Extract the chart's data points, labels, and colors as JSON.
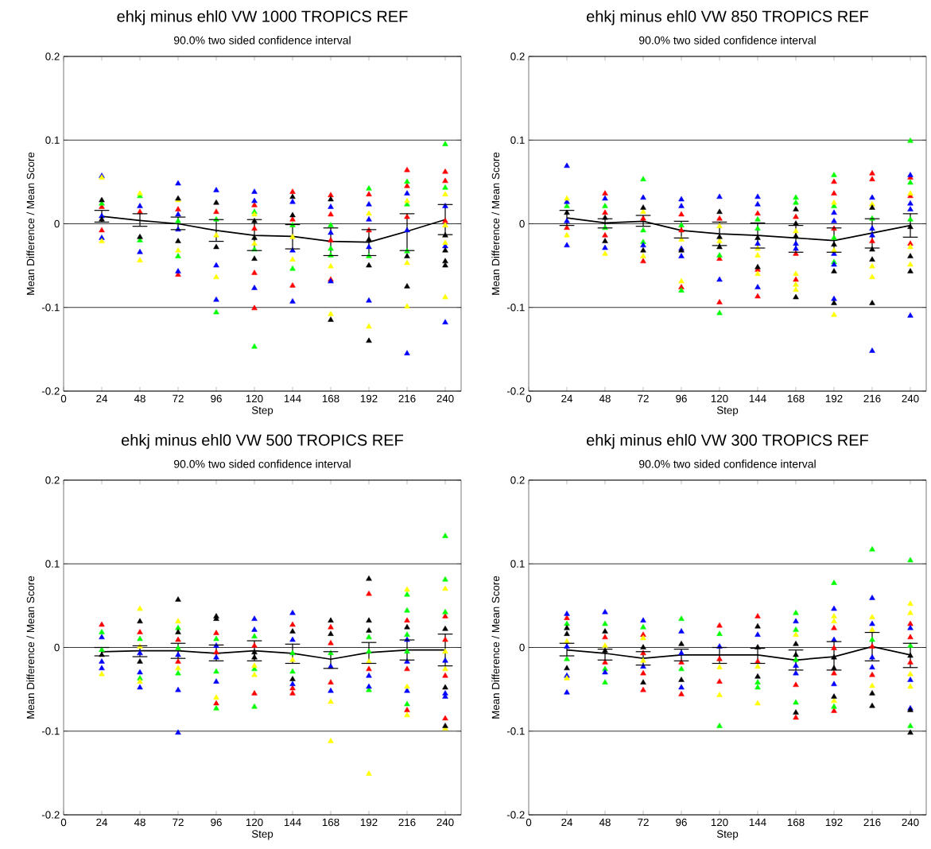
{
  "chart_data": [
    {
      "type": "scatter",
      "title": "ehkj minus ehl0 VW 1000 TROPICS REF",
      "subtitle": "90.0% two sided confidence interval",
      "xlabel": "Step",
      "ylabel": "Mean Difference / Mean Score",
      "xlim": [
        0,
        250
      ],
      "ylim": [
        -0.2,
        0.2
      ],
      "xticks": [
        0,
        24,
        48,
        72,
        96,
        120,
        144,
        168,
        192,
        216,
        240
      ],
      "yticks": [
        -0.2,
        -0.1,
        0,
        0.1,
        0.2
      ],
      "grid": "y",
      "marker": "triangle",
      "series": [
        {
          "type": "scatter",
          "color": "#ff0000",
          "x": [
            24,
            24,
            48,
            72,
            72,
            96,
            120,
            120,
            120,
            120,
            144,
            144,
            144,
            168,
            168,
            168,
            168,
            192,
            192,
            216,
            216,
            216,
            240,
            240,
            240
          ],
          "values": [
            0.02,
            -0.008,
            0.014,
            0.017,
            -0.061,
            0.014,
            0.022,
            -0.006,
            -0.059,
            -0.101,
            0.038,
            0.005,
            -0.074,
            0.034,
            0.011,
            -0.02,
            -0.067,
            0.035,
            -0.008,
            0.064,
            0.045,
            0.008,
            0.062,
            0.051,
            0.003
          ]
        },
        {
          "type": "scatter",
          "color": "#00ff00",
          "x": [
            24,
            48,
            48,
            72,
            72,
            96,
            96,
            120,
            120,
            120,
            144,
            144,
            168,
            168,
            168,
            192,
            192,
            216,
            216,
            216,
            240,
            240
          ],
          "values": [
            0.024,
            0.033,
            -0.02,
            0.003,
            -0.039,
            0.005,
            -0.106,
            0.014,
            -0.031,
            -0.147,
            -0.002,
            -0.054,
            -0.002,
            -0.03,
            -0.038,
            0.042,
            -0.039,
            0.05,
            0.023,
            -0.033,
            0.095,
            0.043
          ]
        },
        {
          "type": "scatter",
          "color": "#0000ff",
          "x": [
            24,
            24,
            24,
            48,
            48,
            72,
            72,
            72,
            72,
            96,
            96,
            96,
            120,
            120,
            120,
            144,
            144,
            144,
            168,
            168,
            168,
            192,
            192,
            192,
            192,
            216,
            216,
            216,
            240,
            240,
            240
          ],
          "values": [
            0.057,
            0.009,
            -0.017,
            0.021,
            -0.034,
            0.048,
            0.011,
            -0.007,
            -0.057,
            0.04,
            -0.05,
            -0.091,
            0.038,
            0.027,
            -0.077,
            0.026,
            -0.032,
            -0.093,
            0.02,
            -0.011,
            -0.069,
            0.023,
            0.005,
            -0.028,
            -0.092,
            0.036,
            -0.008,
            -0.155,
            0.021,
            -0.027,
            -0.118
          ]
        },
        {
          "type": "scatter",
          "color": "#ffff00",
          "x": [
            24,
            24,
            48,
            48,
            72,
            72,
            96,
            96,
            120,
            120,
            144,
            144,
            168,
            168,
            192,
            192,
            216,
            216,
            216,
            240,
            240,
            240,
            240
          ],
          "values": [
            0.055,
            -0.021,
            0.036,
            -0.044,
            0.028,
            -0.032,
            -0.014,
            -0.064,
            0.011,
            -0.024,
            -0.016,
            -0.043,
            -0.051,
            -0.108,
            0.012,
            -0.123,
            0.027,
            -0.047,
            -0.099,
            0.035,
            -0.002,
            -0.023,
            -0.088
          ]
        },
        {
          "type": "scatter",
          "color": "#000000",
          "x": [
            24,
            24,
            48,
            72,
            72,
            96,
            96,
            120,
            120,
            120,
            144,
            144,
            168,
            168,
            192,
            192,
            192,
            216,
            216,
            240,
            240,
            240,
            240
          ],
          "values": [
            0.028,
            0.005,
            -0.016,
            0.03,
            -0.021,
            0.025,
            -0.028,
            0.003,
            -0.017,
            -0.042,
            0.032,
            0.01,
            0.029,
            -0.115,
            -0.019,
            -0.05,
            -0.14,
            -0.039,
            -0.075,
            -0.014,
            -0.032,
            -0.045,
            -0.05
          ]
        },
        {
          "type": "line",
          "color": "#000000",
          "marker": "none",
          "x": [
            24,
            48,
            72,
            96,
            120,
            144,
            168,
            192,
            216,
            240
          ],
          "values": [
            0.009,
            0.004,
            0.0,
            -0.008,
            -0.014,
            -0.015,
            -0.021,
            -0.022,
            -0.009,
            0.005
          ],
          "errors": [
            [
              0.002,
              0.016
            ],
            [
              -0.003,
              0.012
            ],
            [
              -0.007,
              0.008
            ],
            [
              -0.021,
              0.005
            ],
            [
              -0.032,
              0.005
            ],
            [
              -0.03,
              -0.001
            ],
            [
              -0.038,
              -0.005
            ],
            [
              -0.038,
              -0.007
            ],
            [
              -0.032,
              0.012
            ],
            [
              -0.013,
              0.023
            ]
          ]
        }
      ]
    },
    {
      "type": "scatter",
      "title": "ehkj minus ehl0 VW 850 TROPICS REF",
      "subtitle": "90.0% two sided confidence interval",
      "xlabel": "Step",
      "ylabel": "Mean Difference / Mean Score",
      "xlim": [
        0,
        250
      ],
      "ylim": [
        -0.2,
        0.2
      ],
      "xticks": [
        0,
        24,
        48,
        72,
        96,
        120,
        144,
        168,
        192,
        216,
        240
      ],
      "yticks": [
        -0.2,
        -0.1,
        0,
        0.1,
        0.2
      ],
      "grid": "y",
      "marker": "triangle",
      "series": [
        {
          "type": "scatter",
          "color": "#ff0000",
          "x": [
            24,
            48,
            48,
            48,
            72,
            72,
            96,
            96,
            96,
            120,
            120,
            120,
            144,
            144,
            144,
            168,
            168,
            168,
            192,
            192,
            192,
            216,
            216,
            216,
            240,
            240,
            240
          ],
          "values": [
            -0.005,
            0.036,
            0.013,
            -0.014,
            0.006,
            -0.045,
            0.011,
            -0.008,
            -0.076,
            0.006,
            -0.042,
            -0.094,
            0.012,
            -0.055,
            -0.087,
            0.008,
            -0.036,
            -0.067,
            0.05,
            0.036,
            -0.006,
            0.06,
            0.053,
            -0.021,
            0.055,
            0.033,
            -0.024
          ]
        },
        {
          "type": "scatter",
          "color": "#00ff00",
          "x": [
            24,
            48,
            48,
            72,
            72,
            72,
            96,
            96,
            120,
            120,
            144,
            144,
            168,
            168,
            192,
            192,
            192,
            192,
            216,
            240,
            240,
            240
          ],
          "values": [
            0.021,
            0.021,
            -0.005,
            0.053,
            -0.008,
            -0.022,
            -0.002,
            -0.08,
            -0.038,
            -0.107,
            0.005,
            -0.006,
            0.031,
            0.025,
            0.058,
            0.021,
            -0.017,
            -0.046,
            0.006,
            0.099,
            0.049,
            0.005
          ]
        },
        {
          "type": "scatter",
          "color": "#0000ff",
          "x": [
            24,
            24,
            24,
            24,
            48,
            48,
            72,
            72,
            96,
            96,
            96,
            96,
            120,
            120,
            144,
            144,
            144,
            144,
            168,
            168,
            192,
            192,
            192,
            192,
            192,
            216,
            216,
            216,
            216,
            240,
            240,
            240,
            240
          ],
          "values": [
            0.069,
            0.026,
            0.003,
            -0.026,
            0.03,
            -0.029,
            0.031,
            -0.026,
            0.029,
            0.021,
            -0.03,
            -0.039,
            0.032,
            -0.067,
            0.032,
            0.023,
            -0.024,
            -0.076,
            -0.024,
            -0.03,
            0.013,
            0.003,
            -0.036,
            -0.049,
            -0.09,
            0.031,
            -0.006,
            -0.014,
            -0.152,
            0.058,
            0.024,
            0.017,
            -0.11
          ]
        },
        {
          "type": "scatter",
          "color": "#ffff00",
          "x": [
            24,
            24,
            48,
            72,
            72,
            96,
            96,
            120,
            120,
            144,
            144,
            144,
            168,
            168,
            168,
            168,
            192,
            192,
            192,
            216,
            216,
            216,
            240,
            240,
            240
          ],
          "values": [
            0.03,
            -0.014,
            -0.036,
            0.014,
            -0.039,
            -0.019,
            -0.069,
            -0.003,
            -0.021,
            -0.03,
            -0.038,
            -0.06,
            -0.009,
            -0.06,
            -0.073,
            -0.079,
            0.025,
            -0.032,
            -0.109,
            0.023,
            -0.051,
            -0.064,
            0.036,
            -0.028,
            -0.049
          ]
        },
        {
          "type": "scatter",
          "color": "#000000",
          "x": [
            24,
            48,
            48,
            72,
            72,
            96,
            120,
            120,
            120,
            144,
            144,
            168,
            168,
            168,
            168,
            192,
            192,
            192,
            216,
            216,
            216,
            216,
            240,
            240,
            240
          ],
          "values": [
            0.013,
            0.007,
            -0.021,
            0.019,
            -0.032,
            -0.032,
            0.014,
            -0.016,
            -0.028,
            -0.017,
            -0.052,
            0.017,
            0.0,
            -0.015,
            -0.088,
            -0.025,
            -0.057,
            -0.095,
            0.019,
            -0.031,
            -0.043,
            -0.095,
            -0.004,
            -0.039,
            -0.057
          ]
        },
        {
          "type": "line",
          "color": "#000000",
          "marker": "none",
          "x": [
            24,
            48,
            72,
            96,
            120,
            144,
            168,
            192,
            216,
            240
          ],
          "values": [
            0.007,
            0.001,
            0.003,
            -0.008,
            -0.012,
            -0.014,
            -0.017,
            -0.02,
            -0.011,
            -0.002
          ],
          "errors": [
            [
              -0.002,
              0.016
            ],
            [
              -0.005,
              0.006
            ],
            [
              -0.003,
              0.01
            ],
            [
              -0.017,
              0.003
            ],
            [
              -0.026,
              0.002
            ],
            [
              -0.029,
              0.001
            ],
            [
              -0.034,
              -0.002
            ],
            [
              -0.034,
              -0.005
            ],
            [
              -0.029,
              0.006
            ],
            [
              -0.016,
              0.012
            ]
          ]
        }
      ]
    },
    {
      "type": "scatter",
      "title": "ehkj minus ehl0 VW 500 TROPICS REF",
      "subtitle": "90.0% two sided confidence interval",
      "xlabel": "Step",
      "ylabel": "Mean Difference / Mean Score",
      "xlim": [
        0,
        250
      ],
      "ylim": [
        -0.2,
        0.2
      ],
      "xticks": [
        0,
        24,
        48,
        72,
        96,
        120,
        144,
        168,
        192,
        216,
        240
      ],
      "yticks": [
        -0.2,
        -0.1,
        0,
        0.1,
        0.2
      ],
      "grid": "y",
      "marker": "triangle",
      "series": [
        {
          "type": "scatter",
          "color": "#ff0000",
          "x": [
            24,
            48,
            72,
            72,
            96,
            96,
            96,
            120,
            120,
            144,
            144,
            144,
            168,
            168,
            168,
            192,
            192,
            216,
            216,
            216,
            240,
            240,
            240,
            240
          ],
          "values": [
            0.027,
            0.018,
            0.009,
            -0.017,
            0.017,
            -0.006,
            -0.067,
            0.002,
            -0.055,
            0.027,
            -0.049,
            -0.055,
            0.024,
            0.005,
            -0.042,
            0.064,
            -0.026,
            0.032,
            -0.026,
            -0.075,
            0.037,
            0.009,
            -0.034,
            -0.085
          ]
        },
        {
          "type": "scatter",
          "color": "#00ff00",
          "x": [
            24,
            24,
            48,
            48,
            72,
            72,
            72,
            96,
            96,
            96,
            120,
            120,
            120,
            144,
            144,
            168,
            192,
            192,
            192,
            216,
            216,
            216,
            216,
            216,
            240,
            240,
            240
          ],
          "values": [
            0.018,
            -0.003,
            0.01,
            -0.037,
            0.023,
            -0.001,
            -0.031,
            0.01,
            -0.029,
            -0.073,
            0.013,
            -0.026,
            -0.071,
            -0.007,
            -0.029,
            -0.007,
            0.012,
            -0.005,
            -0.051,
            0.063,
            0.044,
            0.015,
            -0.005,
            -0.068,
            0.133,
            0.081,
            0.042
          ]
        },
        {
          "type": "scatter",
          "color": "#0000ff",
          "x": [
            24,
            24,
            24,
            48,
            48,
            48,
            72,
            72,
            72,
            96,
            96,
            96,
            120,
            120,
            144,
            144,
            144,
            168,
            168,
            192,
            192,
            216,
            216,
            216,
            240,
            240,
            240
          ],
          "values": [
            0.012,
            -0.017,
            -0.025,
            -0.007,
            -0.03,
            -0.048,
            -0.009,
            -0.051,
            -0.102,
            0.002,
            -0.012,
            -0.041,
            0.034,
            0.021,
            0.041,
            0.009,
            -0.044,
            -0.023,
            -0.052,
            -0.034,
            -0.047,
            0.009,
            -0.017,
            -0.052,
            -0.016,
            -0.055,
            -0.059
          ]
        },
        {
          "type": "scatter",
          "color": "#ffff00",
          "x": [
            24,
            48,
            48,
            48,
            72,
            72,
            96,
            120,
            120,
            144,
            168,
            168,
            192,
            192,
            216,
            216,
            216,
            240,
            240,
            240,
            240
          ],
          "values": [
            -0.032,
            0.046,
            0.001,
            -0.041,
            0.031,
            -0.025,
            -0.06,
            -0.022,
            -0.033,
            -0.015,
            -0.065,
            -0.112,
            -0.017,
            -0.151,
            0.069,
            -0.047,
            -0.081,
            0.07,
            -0.005,
            -0.026,
            -0.097
          ]
        },
        {
          "type": "scatter",
          "color": "#000000",
          "x": [
            24,
            48,
            48,
            72,
            72,
            96,
            96,
            120,
            120,
            144,
            144,
            168,
            168,
            192,
            192,
            192,
            216,
            240,
            240,
            240
          ],
          "values": [
            -0.009,
            0.031,
            -0.017,
            0.057,
            0.018,
            0.037,
            0.034,
            -0.006,
            -0.012,
            0.019,
            -0.038,
            0.032,
            0.016,
            0.082,
            0.032,
            0.02,
            0.024,
            0.022,
            -0.048,
            -0.094
          ]
        },
        {
          "type": "line",
          "color": "#000000",
          "marker": "none",
          "x": [
            24,
            48,
            72,
            96,
            120,
            144,
            168,
            192,
            216,
            240
          ],
          "values": [
            -0.005,
            -0.004,
            -0.004,
            -0.007,
            -0.004,
            -0.007,
            -0.014,
            -0.006,
            -0.003,
            -0.003
          ],
          "errors": [
            [
              -0.01,
              0.0
            ],
            [
              -0.011,
              0.002
            ],
            [
              -0.013,
              0.005
            ],
            [
              -0.016,
              0.003
            ],
            [
              -0.016,
              0.008
            ],
            [
              -0.019,
              0.004
            ],
            [
              -0.025,
              -0.005
            ],
            [
              -0.019,
              0.006
            ],
            [
              -0.015,
              0.009
            ],
            [
              -0.022,
              0.016
            ]
          ]
        }
      ]
    },
    {
      "type": "scatter",
      "title": "ehkj minus ehl0 VW 300 TROPICS REF",
      "subtitle": "90.0% two sided confidence interval",
      "xlabel": "Step",
      "ylabel": "Mean Difference / Mean Score",
      "xlim": [
        0,
        250
      ],
      "ylim": [
        -0.2,
        0.2
      ],
      "xticks": [
        0,
        24,
        48,
        72,
        96,
        120,
        144,
        168,
        192,
        216,
        240
      ],
      "yticks": [
        -0.2,
        -0.1,
        0,
        0.1,
        0.2
      ],
      "grid": "y",
      "marker": "triangle",
      "series": [
        {
          "type": "scatter",
          "color": "#ff0000",
          "x": [
            24,
            48,
            48,
            72,
            72,
            72,
            72,
            96,
            96,
            120,
            120,
            120,
            144,
            144,
            168,
            168,
            192,
            192,
            192,
            192,
            216,
            216,
            240,
            240,
            240
          ],
          "values": [
            0.035,
            0.012,
            -0.018,
            0.015,
            -0.007,
            -0.031,
            -0.051,
            -0.018,
            -0.056,
            0.026,
            -0.014,
            -0.041,
            0.037,
            -0.017,
            -0.045,
            -0.084,
            0.023,
            -0.001,
            -0.031,
            -0.076,
            0.001,
            -0.033,
            0.028,
            0.012,
            -0.018
          ]
        },
        {
          "type": "scatter",
          "color": "#00ff00",
          "x": [
            24,
            24,
            48,
            48,
            48,
            72,
            96,
            96,
            120,
            120,
            144,
            144,
            168,
            168,
            168,
            168,
            192,
            192,
            216,
            216,
            240,
            240,
            240
          ],
          "values": [
            0.028,
            -0.014,
            0.028,
            -0.026,
            -0.042,
            0.024,
            0.034,
            -0.026,
            0.016,
            -0.094,
            -0.042,
            -0.048,
            0.041,
            0.021,
            -0.015,
            -0.066,
            0.077,
            -0.071,
            0.117,
            0.009,
            0.104,
            0.002,
            -0.094
          ]
        },
        {
          "type": "scatter",
          "color": "#0000ff",
          "x": [
            24,
            24,
            24,
            24,
            48,
            48,
            72,
            72,
            96,
            96,
            96,
            120,
            144,
            168,
            168,
            168,
            192,
            192,
            192,
            216,
            216,
            216,
            216,
            240,
            240,
            240
          ],
          "values": [
            0.04,
            0.001,
            -0.034,
            -0.054,
            0.042,
            -0.03,
            0.032,
            -0.023,
            0.019,
            -0.007,
            -0.048,
            0.001,
            0.015,
            0.031,
            -0.022,
            -0.031,
            0.046,
            0.009,
            -0.044,
            0.059,
            0.028,
            -0.012,
            -0.024,
            0.023,
            -0.039,
            -0.073
          ]
        },
        {
          "type": "scatter",
          "color": "#ffff00",
          "x": [
            24,
            24,
            48,
            72,
            72,
            120,
            120,
            144,
            144,
            168,
            192,
            192,
            192,
            216,
            216,
            216,
            240,
            240,
            240,
            240
          ],
          "values": [
            0.007,
            -0.037,
            0.002,
            0.011,
            -0.016,
            -0.024,
            -0.057,
            -0.023,
            -0.067,
            0.015,
            0.037,
            0.031,
            -0.064,
            0.036,
            0.021,
            -0.046,
            0.052,
            0.041,
            -0.032,
            -0.047
          ]
        },
        {
          "type": "scatter",
          "color": "#000000",
          "x": [
            24,
            24,
            24,
            48,
            48,
            72,
            72,
            96,
            96,
            144,
            144,
            144,
            168,
            168,
            168,
            192,
            192,
            192,
            216,
            216,
            240,
            240,
            240
          ],
          "values": [
            0.023,
            0.016,
            -0.025,
            0.019,
            -0.004,
            0.0,
            -0.042,
            0.004,
            -0.039,
            0.025,
            0.0,
            -0.035,
            0.004,
            -0.009,
            -0.078,
            -0.012,
            -0.025,
            -0.059,
            -0.055,
            -0.07,
            -0.01,
            -0.075,
            -0.102
          ]
        },
        {
          "type": "line",
          "color": "#000000",
          "marker": "none",
          "x": [
            24,
            48,
            72,
            96,
            120,
            144,
            168,
            192,
            216,
            240
          ],
          "values": [
            -0.003,
            -0.007,
            -0.013,
            -0.009,
            -0.009,
            -0.009,
            -0.015,
            -0.011,
            0.001,
            -0.009
          ],
          "errors": [
            [
              -0.01,
              0.005
            ],
            [
              -0.015,
              -0.002
            ],
            [
              -0.021,
              -0.005
            ],
            [
              -0.016,
              -0.002
            ],
            [
              -0.019,
              0.0
            ],
            [
              -0.019,
              -0.001
            ],
            [
              -0.027,
              -0.003
            ],
            [
              -0.027,
              0.007
            ],
            [
              -0.016,
              0.018
            ],
            [
              -0.024,
              0.005
            ]
          ]
        }
      ]
    }
  ]
}
